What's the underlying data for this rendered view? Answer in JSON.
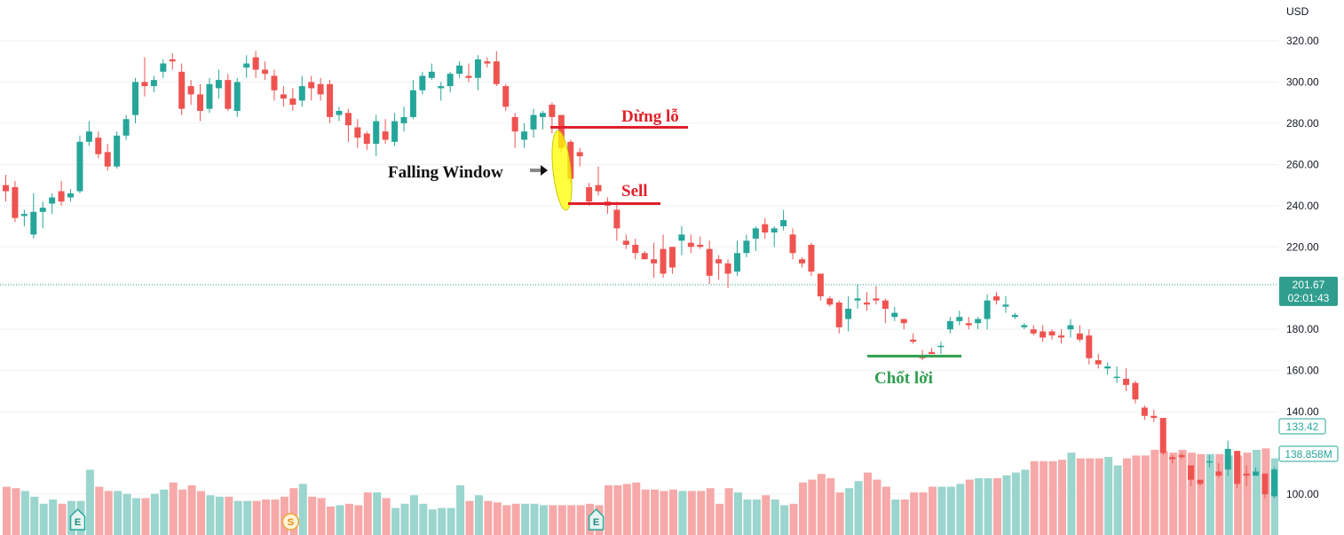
{
  "chart_data": {
    "type": "candlestick",
    "currency": "USD",
    "y_axis": {
      "ticks": [
        "320.00",
        "300.00",
        "280.00",
        "260.00",
        "240.00",
        "220.00",
        "180.00",
        "160.00",
        "140.00",
        "100.00"
      ],
      "ylim": [
        95,
        328
      ]
    },
    "current_price": {
      "value": 201.67,
      "label": "201.67",
      "countdown": "02:01:43"
    },
    "volume_tags": {
      "price_label": "133.42",
      "volume_label": "138.858M"
    },
    "annotations": {
      "stop_loss": {
        "label": "Dừng lỗ",
        "price": 278
      },
      "sell": {
        "label": "Sell",
        "price": 241
      },
      "take_profit": {
        "label": "Chốt lời",
        "price": 167
      },
      "pattern": {
        "label": "Falling Window"
      }
    },
    "events": [
      {
        "letter": "E",
        "index": 7
      },
      {
        "letter": "S",
        "index": 30
      },
      {
        "letter": "E",
        "index": 63
      }
    ],
    "colors": {
      "up": "#26a69a",
      "down": "#ef5350",
      "vol_up": "#9ad5ce",
      "vol_down": "#f6a9a8",
      "stop": "#e0202b",
      "take": "#2e9e4e"
    },
    "candles": [
      [
        255,
        250,
        242,
        247
      ],
      [
        252,
        249,
        232,
        234
      ],
      [
        238,
        235,
        230,
        236
      ],
      [
        246,
        226,
        224,
        237
      ],
      [
        242,
        237,
        229,
        239
      ],
      [
        246,
        241,
        236,
        244
      ],
      [
        252,
        247,
        240,
        242
      ],
      [
        248,
        244,
        242,
        246
      ],
      [
        274,
        247,
        246,
        271
      ],
      [
        281,
        271,
        269,
        276
      ],
      [
        276,
        273,
        263,
        265
      ],
      [
        270,
        266,
        257,
        259
      ],
      [
        276,
        259,
        258,
        274
      ],
      [
        284,
        274,
        272,
        282
      ],
      [
        302,
        284,
        280,
        300
      ],
      [
        312,
        300,
        293,
        298
      ],
      [
        303,
        298,
        295,
        301
      ],
      [
        311,
        305,
        302,
        309
      ],
      [
        314,
        311,
        306,
        310
      ],
      [
        309,
        305,
        284,
        287
      ],
      [
        301,
        298,
        289,
        294
      ],
      [
        299,
        294,
        281,
        286
      ],
      [
        302,
        287,
        285,
        299
      ],
      [
        306,
        297,
        292,
        301
      ],
      [
        304,
        301,
        286,
        287
      ],
      [
        302,
        286,
        283,
        300
      ],
      [
        313,
        307,
        302,
        309
      ],
      [
        315,
        312,
        302,
        306
      ],
      [
        310,
        306,
        301,
        304
      ],
      [
        306,
        303,
        291,
        296
      ],
      [
        298,
        294,
        288,
        292
      ],
      [
        297,
        292,
        286,
        289
      ],
      [
        303,
        291,
        288,
        298
      ],
      [
        303,
        300,
        291,
        297
      ],
      [
        302,
        299,
        291,
        294
      ],
      [
        301,
        299,
        280,
        283
      ],
      [
        288,
        284,
        281,
        286
      ],
      [
        287,
        285,
        271,
        279
      ],
      [
        282,
        278,
        268,
        273
      ],
      [
        276,
        275,
        267,
        270
      ],
      [
        284,
        270,
        264,
        281
      ],
      [
        282,
        276,
        270,
        272
      ],
      [
        285,
        271,
        269,
        281
      ],
      [
        288,
        280,
        276,
        283
      ],
      [
        301,
        283,
        282,
        296
      ],
      [
        305,
        296,
        294,
        303
      ],
      [
        309,
        302,
        301,
        305
      ],
      [
        300,
        297,
        291,
        298
      ],
      [
        305,
        298,
        295,
        304
      ],
      [
        310,
        304,
        302,
        308
      ],
      [
        309,
        303,
        300,
        302
      ],
      [
        313,
        302,
        296,
        311
      ],
      [
        312,
        310,
        307,
        309
      ],
      [
        315,
        310,
        298,
        299
      ],
      [
        299,
        298,
        286,
        288
      ],
      [
        285,
        283,
        268,
        276
      ],
      [
        280,
        272,
        268,
        276
      ],
      [
        287,
        277,
        273,
        284
      ],
      [
        286,
        283,
        277,
        285
      ],
      [
        290,
        289,
        275,
        283
      ],
      [
        284,
        284,
        266,
        268
      ],
      [
        272,
        271,
        251,
        253
      ],
      [
        268,
        266,
        259,
        264
      ],
      [
        251,
        249,
        240,
        242
      ],
      [
        259,
        250,
        245,
        247
      ],
      [
        244,
        242,
        236,
        240
      ],
      [
        242,
        238,
        223,
        229
      ],
      [
        226,
        223,
        219,
        221
      ],
      [
        224,
        221,
        214,
        217
      ],
      [
        218,
        217,
        214,
        214
      ],
      [
        222,
        214,
        205,
        212
      ],
      [
        226,
        219,
        205,
        207
      ],
      [
        220,
        220,
        207,
        210
      ],
      [
        230,
        223,
        216,
        226
      ],
      [
        226,
        222,
        217,
        220
      ],
      [
        225,
        221,
        219,
        220
      ],
      [
        223,
        219,
        202,
        206
      ],
      [
        216,
        214,
        204,
        212
      ],
      [
        214,
        212,
        200,
        207
      ],
      [
        223,
        208,
        206,
        217
      ],
      [
        226,
        217,
        215,
        223
      ],
      [
        230,
        224,
        218,
        229
      ],
      [
        234,
        231,
        224,
        227
      ],
      [
        230,
        227,
        220,
        229
      ],
      [
        238,
        230,
        228,
        233
      ],
      [
        229,
        226,
        214,
        217
      ],
      [
        215,
        214,
        210,
        212
      ],
      [
        222,
        221,
        206,
        208
      ],
      [
        207,
        207,
        194,
        196
      ],
      [
        196,
        195,
        191,
        192
      ],
      [
        194,
        193,
        178,
        181
      ],
      [
        196,
        185,
        179,
        190
      ],
      [
        202,
        194,
        190,
        195
      ],
      [
        198,
        193,
        189,
        192
      ],
      [
        201,
        195,
        192,
        194
      ],
      [
        195,
        194,
        183,
        190
      ],
      [
        191,
        186,
        184,
        188
      ],
      [
        185,
        185,
        180,
        183
      ],
      [
        178,
        175,
        173,
        174
      ],
      [
        170,
        167,
        165,
        166
      ],
      [
        171,
        169,
        168,
        168
      ],
      [
        174,
        172,
        168,
        172
      ],
      [
        186,
        180,
        178,
        184
      ],
      [
        189,
        184,
        182,
        186
      ],
      [
        186,
        183,
        180,
        182
      ],
      [
        186,
        183,
        180,
        185
      ],
      [
        197,
        185,
        180,
        194
      ],
      [
        198,
        196,
        192,
        194
      ],
      [
        196,
        191,
        188,
        192
      ],
      [
        188,
        186,
        185,
        187
      ],
      [
        183,
        181,
        180,
        182
      ],
      [
        182,
        180,
        177,
        178
      ],
      [
        182,
        179,
        174,
        176
      ],
      [
        180,
        179,
        175,
        177
      ],
      [
        180,
        177,
        173,
        176
      ],
      [
        185,
        180,
        176,
        182
      ],
      [
        182,
        178,
        174,
        175
      ],
      [
        180,
        177,
        163,
        166
      ],
      [
        168,
        165,
        161,
        163
      ],
      [
        164,
        161,
        158,
        162
      ],
      [
        162,
        157,
        154,
        157
      ],
      [
        161,
        156,
        150,
        153
      ],
      [
        155,
        154,
        144,
        146
      ],
      [
        143,
        142,
        136,
        138
      ],
      [
        141,
        138,
        135,
        137
      ],
      [
        137,
        137,
        119,
        120
      ],
      [
        119,
        118,
        115,
        117
      ],
      [
        120,
        119,
        117,
        118
      ],
      [
        114,
        114,
        104,
        107
      ],
      [
        107,
        107,
        104,
        105
      ],
      [
        119,
        116,
        113,
        116
      ],
      [
        115,
        111,
        108,
        109
      ],
      [
        126,
        112,
        109,
        122
      ],
      [
        121,
        121,
        103,
        105
      ],
      [
        114,
        110,
        104,
        109
      ],
      [
        113,
        109,
        109,
        111
      ],
      [
        110,
        110,
        98,
        100
      ],
      [
        113,
        99,
        98,
        112
      ],
      [
        119,
        116,
        108,
        110
      ],
      [
        119,
        112,
        108,
        115
      ],
      [
        121,
        114,
        109,
        117
      ],
      [
        118,
        117,
        113,
        116
      ],
      [
        130,
        116,
        112,
        127
      ],
      [
        126,
        120,
        113,
        124
      ],
      [
        138,
        128,
        121,
        122
      ],
      [
        126,
        126,
        118,
        121
      ],
      [
        135,
        127,
        121,
        132
      ]
    ]
  }
}
